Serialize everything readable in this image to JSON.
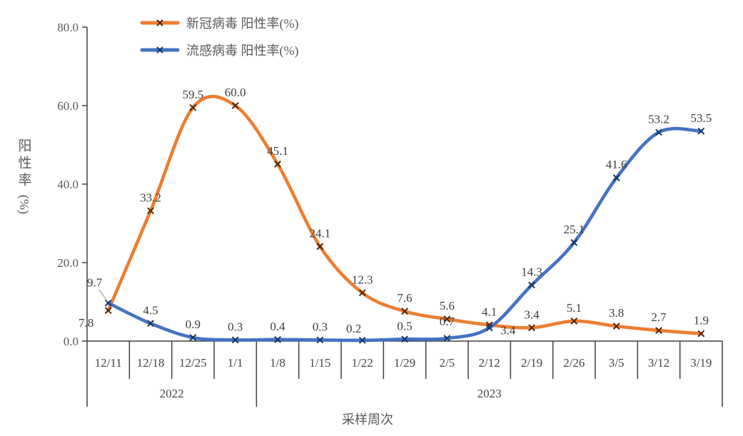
{
  "chart_data": {
    "type": "line",
    "title": "",
    "xlabel": "采样周次",
    "ylabel": "阳性率(%)",
    "ylabel_cjk": "阳性率",
    "ylabel_unit": "(%)",
    "ylim": [
      0,
      80
    ],
    "grid": "off",
    "line_style": "smooth",
    "marker": "x",
    "legend_position": "top-left-inside",
    "y_ticks": [
      {
        "value": 0,
        "label": "0.0"
      },
      {
        "value": 20,
        "label": "20.0"
      },
      {
        "value": 40,
        "label": "40.0"
      },
      {
        "value": 60,
        "label": "60.0"
      },
      {
        "value": 80,
        "label": "80.0"
      }
    ],
    "categories": [
      "12/11",
      "12/18",
      "12/25",
      "1/1",
      "1/8",
      "1/15",
      "1/22",
      "1/29",
      "2/5",
      "2/12",
      "2/19",
      "2/26",
      "3/5",
      "3/12",
      "3/19"
    ],
    "year_groups": [
      {
        "label": "2022",
        "start": 0,
        "end": 3
      },
      {
        "label": "2023",
        "start": 4,
        "end": 14
      }
    ],
    "series": [
      {
        "id": "covid",
        "name": "新冠病毒 阳性率(%)",
        "color": "#ED7D31",
        "marker_color": "#4E2507",
        "values": [
          7.8,
          33.2,
          59.5,
          60.0,
          45.1,
          24.1,
          12.3,
          7.6,
          5.6,
          4.1,
          3.4,
          5.1,
          3.8,
          2.7,
          1.9
        ],
        "labels": [
          "7.8",
          "33.2",
          "59.5",
          "60.0",
          "45.1",
          "24.1",
          "12.3",
          "7.6",
          "5.6",
          "4.1",
          "3.4",
          "5.1",
          "3.8",
          "2.7",
          "1.9"
        ],
        "label_offsets": {
          "0": [
            -31,
            17
          ]
        }
      },
      {
        "id": "flu",
        "name": "流感病毒 阳性率(%)",
        "color": "#4472C4",
        "marker_color": "#17375E",
        "values": [
          9.7,
          4.5,
          0.9,
          0.3,
          0.4,
          0.3,
          0.2,
          0.5,
          0.7,
          3.4,
          14.3,
          25.1,
          41.6,
          53.2,
          53.5
        ],
        "labels": [
          "9.7",
          "4.5",
          "0.9",
          "0.3",
          "0.4",
          "0.3",
          "0.2",
          "0.5",
          "0.7",
          "3.4",
          "14.3",
          "25.1",
          "41.6",
          "53.2",
          "53.5"
        ],
        "label_offsets": {
          "0": [
            -19,
            -29
          ],
          "6": [
            -12,
            -17
          ],
          "8": [
            0,
            -24
          ],
          "9": [
            26,
            3
          ]
        },
        "leader_line_index": 0
      }
    ]
  }
}
